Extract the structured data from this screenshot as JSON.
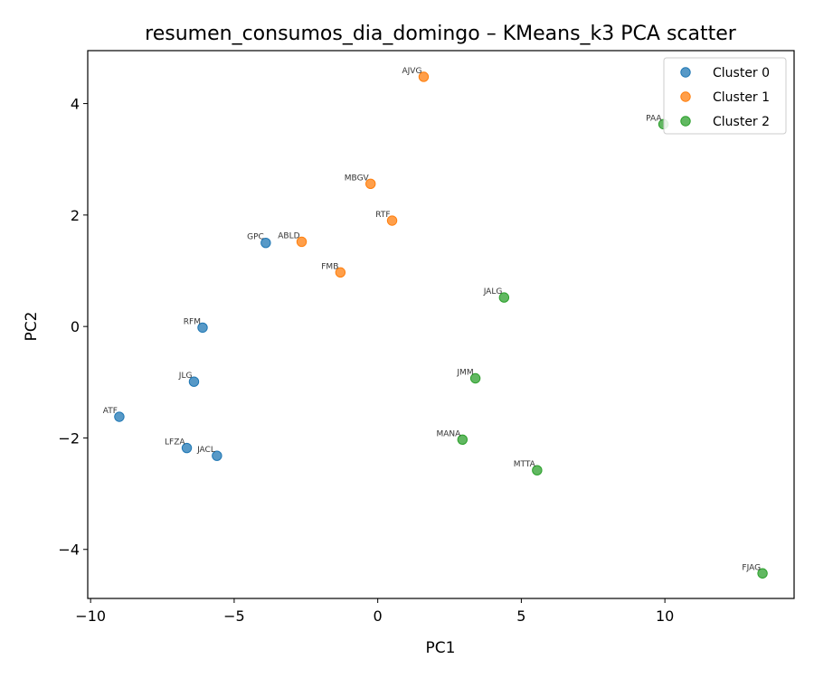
{
  "chart_data": {
    "type": "scatter",
    "title": "resumen_consumos_dia_domingo – KMeans_k3 PCA scatter",
    "xlabel": "PC1",
    "ylabel": "PC2",
    "xlim": [
      -10.1,
      14.5
    ],
    "ylim": [
      -4.88,
      4.95
    ],
    "xticks": [
      -10,
      -5,
      0,
      5,
      10
    ],
    "xtick_labels": [
      "−10",
      "−5",
      "0",
      "5",
      "10"
    ],
    "yticks": [
      -4,
      -2,
      0,
      2,
      4
    ],
    "ytick_labels": [
      "−4",
      "−2",
      "0",
      "2",
      "4"
    ],
    "grid": false,
    "legend_position": "top-right",
    "series": [
      {
        "name": "Cluster 0",
        "color": "#1f77b4",
        "points": [
          {
            "label": "GPC",
            "x": -3.9,
            "y": 1.5
          },
          {
            "label": "RFM",
            "x": -6.1,
            "y": -0.02
          },
          {
            "label": "JLG",
            "x": -6.4,
            "y": -0.99
          },
          {
            "label": "ATF",
            "x": -9.0,
            "y": -1.62
          },
          {
            "label": "LFZA",
            "x": -6.65,
            "y": -2.18
          },
          {
            "label": "JACL",
            "x": -5.6,
            "y": -2.32
          }
        ]
      },
      {
        "name": "Cluster 1",
        "color": "#ff7f0e",
        "points": [
          {
            "label": "AJVG",
            "x": 1.6,
            "y": 4.48
          },
          {
            "label": "MBGV",
            "x": -0.25,
            "y": 2.56
          },
          {
            "label": "RTF",
            "x": 0.5,
            "y": 1.9
          },
          {
            "label": "ABLD",
            "x": -2.65,
            "y": 1.52
          },
          {
            "label": "FMB",
            "x": -1.3,
            "y": 0.97
          }
        ]
      },
      {
        "name": "Cluster 2",
        "color": "#2ca02c",
        "points": [
          {
            "label": "PAA",
            "x": 9.95,
            "y": 3.63
          },
          {
            "label": "JALG",
            "x": 4.4,
            "y": 0.52
          },
          {
            "label": "JMM",
            "x": 3.4,
            "y": -0.93
          },
          {
            "label": "MANA",
            "x": 2.95,
            "y": -2.03
          },
          {
            "label": "MTTA",
            "x": 5.55,
            "y": -2.58
          },
          {
            "label": "FJAG",
            "x": 13.4,
            "y": -4.43
          }
        ]
      }
    ]
  }
}
